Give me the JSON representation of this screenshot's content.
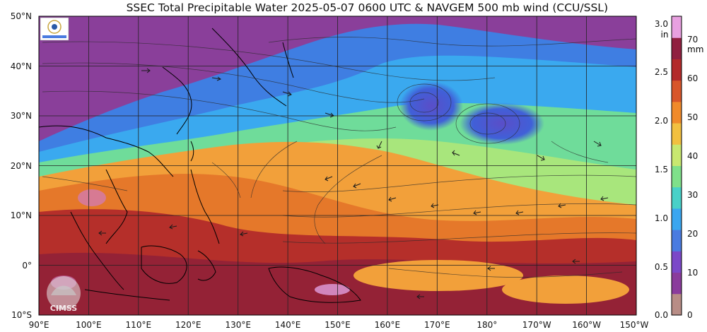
{
  "title": "SSEC Total Precipitable Water  2025-05-07 0600 UTC & NAVGEM 500 mb wind (CCU/SSL)",
  "map": {
    "lat_labels": [
      "50°N",
      "40°N",
      "30°N",
      "20°N",
      "10°N",
      "0°",
      "10°S"
    ],
    "lon_labels": [
      "90°E",
      "100°E",
      "110°E",
      "120°E",
      "130°E",
      "140°E",
      "150°E",
      "160°E",
      "170°E",
      "180°",
      "170°W",
      "160°W",
      "150°W"
    ],
    "watermark": "CIMSS",
    "lat_range": [
      -10,
      50
    ],
    "lon_range": [
      90,
      210
    ]
  },
  "colorbar": {
    "unit_in": "in",
    "unit_mm": "mm",
    "in_ticks": [
      "3.0",
      "2.5",
      "2.0",
      "1.5",
      "1.0",
      "0.5",
      "0.0"
    ],
    "mm_ticks": [
      "70",
      "60",
      "50",
      "40",
      "30",
      "20",
      "10",
      "0"
    ],
    "colors": [
      "#b88d86",
      "#8a3c9c",
      "#7b48c8",
      "#4a7be0",
      "#3aa6f0",
      "#48d1c8",
      "#7fe08a",
      "#c8e870",
      "#f2c040",
      "#f08a2a",
      "#d8562a",
      "#b32a2a",
      "#902040",
      "#e8a0e0"
    ]
  }
}
